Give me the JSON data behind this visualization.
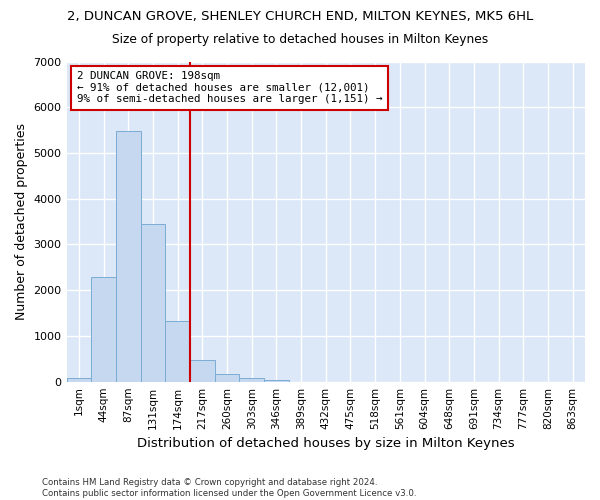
{
  "title": "2, DUNCAN GROVE, SHENLEY CHURCH END, MILTON KEYNES, MK5 6HL",
  "subtitle": "Size of property relative to detached houses in Milton Keynes",
  "xlabel": "Distribution of detached houses by size in Milton Keynes",
  "ylabel": "Number of detached properties",
  "categories": [
    "1sqm",
    "44sqm",
    "87sqm",
    "131sqm",
    "174sqm",
    "217sqm",
    "260sqm",
    "303sqm",
    "346sqm",
    "389sqm",
    "432sqm",
    "475sqm",
    "518sqm",
    "561sqm",
    "604sqm",
    "648sqm",
    "691sqm",
    "734sqm",
    "777sqm",
    "820sqm",
    "863sqm"
  ],
  "values": [
    80,
    2280,
    5480,
    3440,
    1320,
    470,
    160,
    90,
    30,
    0,
    0,
    0,
    0,
    0,
    0,
    0,
    0,
    0,
    0,
    0,
    0
  ],
  "bar_color": "#c5d8f0",
  "bar_edgecolor": "#7aadd4",
  "vline_x": 4.5,
  "vline_color": "#cc0000",
  "annotation_text": "2 DUNCAN GROVE: 198sqm\n← 91% of detached houses are smaller (12,001)\n9% of semi-detached houses are larger (1,151) →",
  "ann_box_color": "#cc0000",
  "ylim": [
    0,
    7000
  ],
  "yticks": [
    0,
    1000,
    2000,
    3000,
    4000,
    5000,
    6000,
    7000
  ],
  "bg_color": "#dce8f8",
  "plot_bg": "#dce8f8",
  "fig_bg": "#ffffff",
  "grid_color": "#ffffff",
  "footnote": "Contains HM Land Registry data © Crown copyright and database right 2024.\nContains public sector information licensed under the Open Government Licence v3.0."
}
